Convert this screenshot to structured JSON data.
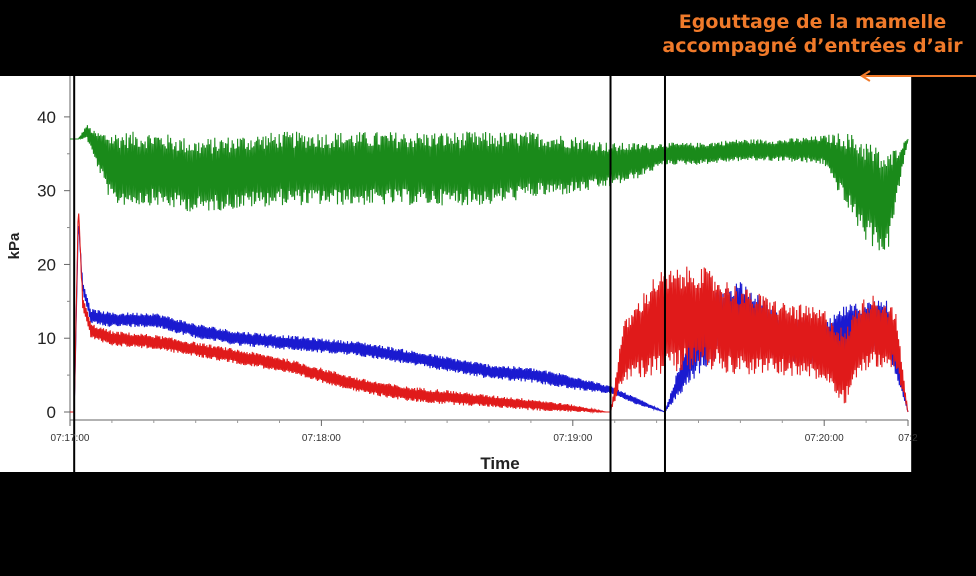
{
  "chart_data": {
    "type": "line",
    "ylabel": "kPa",
    "xlabel": "Time",
    "ylim": [
      0,
      45
    ],
    "yticks": [
      0,
      10,
      20,
      30,
      40
    ],
    "xlim": [
      "07:17:00",
      "07:20:20"
    ],
    "xticks": [
      "07:17:00",
      "07:18:00",
      "07:19:00",
      "07:20:00",
      "07:2"
    ],
    "grid": false,
    "legend": "none",
    "annotation": {
      "lines": [
        "Egouttage de la mamelle",
        "accompagné d’entrées d’air"
      ],
      "color": "#f07a2a",
      "arrow_from": "07:20:09",
      "arrow_to": "07:20:49"
    },
    "vertical_markers": [
      "07:17:01",
      "07:19:09",
      "07:19:22",
      "07:20:21"
    ],
    "series": [
      {
        "color": "#1a8a1a",
        "x": [
          "07:17:00",
          "07:17:02",
          "07:17:04",
          "07:17:06",
          "07:17:10",
          "07:17:20",
          "07:17:30",
          "07:17:40",
          "07:17:50",
          "07:18:00",
          "07:18:10",
          "07:18:20",
          "07:18:30",
          "07:18:40",
          "07:18:50",
          "07:19:00",
          "07:19:09",
          "07:19:15",
          "07:19:22",
          "07:19:30",
          "07:19:40",
          "07:19:50",
          "07:20:00",
          "07:20:05",
          "07:20:10",
          "07:20:15",
          "07:20:20"
        ],
        "y": [
          37,
          37,
          38,
          36,
          33,
          33,
          32,
          32.5,
          33,
          33,
          33,
          33,
          33,
          33,
          33.5,
          33.5,
          33.5,
          34,
          35,
          35,
          35.5,
          35.5,
          35.5,
          33,
          30,
          28,
          37
        ],
        "amp": [
          0,
          0,
          1,
          2,
          5,
          5,
          5,
          5,
          5,
          5,
          5,
          5,
          5,
          5,
          4.5,
          4,
          3,
          2.5,
          1.5,
          1.5,
          1.5,
          1.5,
          2,
          5,
          7,
          7,
          0
        ]
      },
      {
        "color": "#1a1ad0",
        "x": [
          "07:17:00",
          "07:17:01",
          "07:17:02",
          "07:17:03",
          "07:17:05",
          "07:17:10",
          "07:17:20",
          "07:17:30",
          "07:17:40",
          "07:17:50",
          "07:18:00",
          "07:18:10",
          "07:18:20",
          "07:18:30",
          "07:18:40",
          "07:18:50",
          "07:19:00",
          "07:19:09",
          "07:19:15",
          "07:19:22",
          "07:19:30",
          "07:19:40",
          "07:19:50",
          "07:20:00",
          "07:20:05",
          "07:20:10",
          "07:20:15",
          "07:20:20"
        ],
        "y": [
          0,
          0,
          26,
          17,
          13,
          12.5,
          12.5,
          11,
          10,
          9.5,
          9,
          8.5,
          7.5,
          6.5,
          5.5,
          5,
          4,
          3,
          1.5,
          0,
          10,
          14,
          10,
          9,
          11,
          11.5,
          12,
          0
        ],
        "amp": [
          0,
          0,
          0,
          1,
          1,
          1,
          1,
          1,
          1,
          1,
          1,
          1,
          1,
          1,
          1,
          1,
          1,
          0.5,
          0.5,
          0,
          5,
          4,
          3,
          3,
          3.5,
          3.5,
          3.5,
          0
        ]
      },
      {
        "color": "#e01a1a",
        "x": [
          "07:17:00",
          "07:17:01",
          "07:17:02",
          "07:17:03",
          "07:17:05",
          "07:17:10",
          "07:17:20",
          "07:17:30",
          "07:17:40",
          "07:17:50",
          "07:18:00",
          "07:18:10",
          "07:18:20",
          "07:18:30",
          "07:18:40",
          "07:18:50",
          "07:19:00",
          "07:19:08",
          "07:19:09",
          "07:19:12",
          "07:19:20",
          "07:19:30",
          "07:19:40",
          "07:19:50",
          "07:20:00",
          "07:20:05",
          "07:20:08",
          "07:20:12",
          "07:20:17",
          "07:20:20"
        ],
        "y": [
          0,
          0,
          28,
          15,
          11,
          10,
          9.5,
          8.5,
          7.5,
          6.5,
          5,
          3.5,
          2.5,
          2,
          1.5,
          1,
          0.5,
          0,
          0,
          8,
          12,
          13,
          11,
          10,
          9,
          6,
          10,
          11,
          10,
          0
        ],
        "amp": [
          0,
          0,
          0,
          1,
          1,
          1,
          1,
          1,
          1,
          1,
          1,
          1,
          1,
          1,
          0.8,
          0.8,
          0.5,
          0,
          0,
          4,
          7,
          7,
          6,
          5,
          5,
          5,
          5,
          5,
          4,
          0
        ]
      }
    ]
  }
}
